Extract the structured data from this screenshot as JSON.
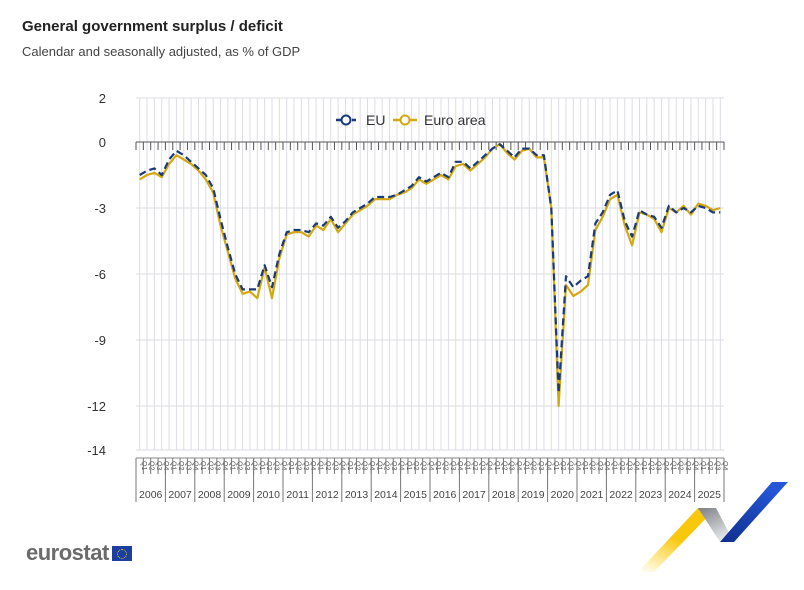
{
  "header": {
    "title": "General government surplus / deficit",
    "subtitle": "Calendar and seasonally adjusted, as % of GDP"
  },
  "logo": {
    "text": "eurostat"
  },
  "colors": {
    "eu": "#1a3a7a",
    "euro_area": "#d4a90f",
    "grid": "#dcdde3",
    "axis": "#555555"
  },
  "chart_data": {
    "type": "line",
    "title": "General government surplus / deficit",
    "subtitle": "Calendar and seasonally adjusted, as % of GDP",
    "xlabel": "",
    "ylabel": "",
    "ylim": [
      -14,
      2
    ],
    "yticks": [
      "2",
      "0",
      "-3",
      "-6",
      "-9",
      "-12",
      "-14"
    ],
    "ytick_values": [
      2,
      0,
      -3,
      -6,
      -9,
      -12,
      -14
    ],
    "grid": true,
    "legend": "top-center",
    "years": [
      "2006",
      "2007",
      "2008",
      "2009",
      "2010",
      "2011",
      "2012",
      "2013",
      "2014",
      "2015",
      "2016",
      "2017",
      "2018",
      "2019",
      "2020",
      "2021",
      "2022",
      "2023",
      "2024",
      "2025"
    ],
    "quarters": [
      "Q1",
      "Q2",
      "Q3",
      "Q4"
    ],
    "series": [
      {
        "name": "EU",
        "style": "dashed",
        "values": [
          -1.5,
          -1.3,
          -1.2,
          -1.5,
          -0.8,
          -0.4,
          -0.6,
          -0.9,
          -1.2,
          -1.5,
          -2.1,
          -3.5,
          -4.8,
          -6.0,
          -6.7,
          -6.7,
          -6.7,
          -5.6,
          -6.6,
          -5.1,
          -4.1,
          -4.0,
          -4.0,
          -4.1,
          -3.7,
          -3.8,
          -3.4,
          -3.9,
          -3.6,
          -3.2,
          -3.0,
          -2.8,
          -2.5,
          -2.5,
          -2.5,
          -2.4,
          -2.2,
          -2.0,
          -1.6,
          -1.8,
          -1.6,
          -1.4,
          -1.6,
          -0.9,
          -0.9,
          -1.2,
          -0.9,
          -0.6,
          -0.3,
          -0.1,
          -0.4,
          -0.7,
          -0.3,
          -0.3,
          -0.6,
          -0.6,
          -3.0,
          -11.4,
          -6.1,
          -6.6,
          -6.3,
          -6.1,
          -3.7,
          -3.2,
          -2.4,
          -2.2,
          -3.6,
          -4.3,
          -3.1,
          -3.3,
          -3.4,
          -3.9,
          -2.9,
          -3.2,
          -3.0,
          -3.2,
          -2.9,
          -3.0,
          -3.2,
          -3.2
        ]
      },
      {
        "name": "Euro area",
        "style": "solid",
        "values": [
          -1.7,
          -1.5,
          -1.4,
          -1.6,
          -1.0,
          -0.6,
          -0.8,
          -1.0,
          -1.3,
          -1.7,
          -2.3,
          -3.8,
          -5.0,
          -6.2,
          -6.9,
          -6.8,
          -7.1,
          -5.7,
          -7.1,
          -5.3,
          -4.2,
          -4.1,
          -4.1,
          -4.3,
          -3.8,
          -4.0,
          -3.5,
          -4.1,
          -3.7,
          -3.3,
          -3.1,
          -2.9,
          -2.6,
          -2.6,
          -2.6,
          -2.4,
          -2.3,
          -2.1,
          -1.7,
          -1.9,
          -1.7,
          -1.5,
          -1.7,
          -1.1,
          -1.0,
          -1.3,
          -1.0,
          -0.7,
          -0.3,
          -0.1,
          -0.5,
          -0.8,
          -0.4,
          -0.3,
          -0.7,
          -0.7,
          -3.0,
          -12.0,
          -6.5,
          -7.0,
          -6.8,
          -6.5,
          -4.0,
          -3.4,
          -2.6,
          -2.4,
          -3.8,
          -4.7,
          -3.2,
          -3.3,
          -3.5,
          -4.1,
          -3.0,
          -3.2,
          -2.9,
          -3.3,
          -2.8,
          -2.9,
          -3.1,
          -3.0
        ]
      }
    ]
  }
}
